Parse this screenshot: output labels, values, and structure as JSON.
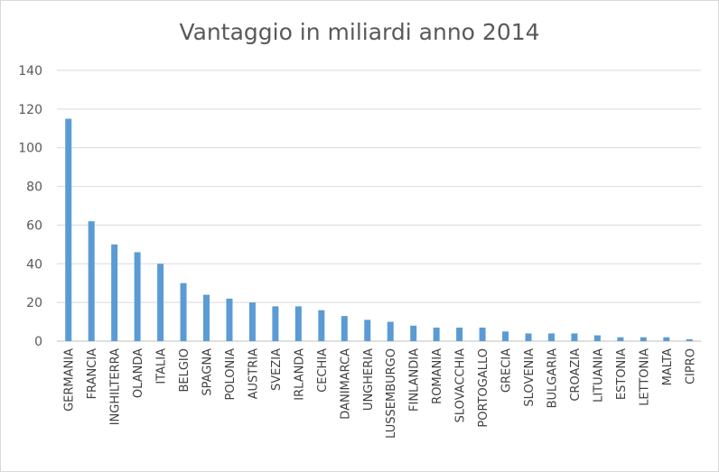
{
  "chart_data": {
    "type": "bar",
    "title": "Vantaggio in miliardi anno 2014",
    "xlabel": "",
    "ylabel": "",
    "ylim": [
      0,
      140
    ],
    "yticks": [
      0,
      20,
      40,
      60,
      80,
      100,
      120,
      140
    ],
    "grid": true,
    "legend": "none",
    "bar_color": "#5b9bd5",
    "categories": [
      "GERMANIA",
      "FRANCIA",
      "INGHILTERRA",
      "OLANDA",
      "ITALIA",
      "BELGIO",
      "SPAGNA",
      "POLONIA",
      "AUSTRIA",
      "SVEZIA",
      "IRLANDA",
      "CECHIA",
      "DANIMARCA",
      "UNGHERIA",
      "LUSSEMBURGO",
      "FINLANDIA",
      "ROMANIA",
      "SLOVACCHIA",
      "PORTOGALLO",
      "GRECIA",
      "SLOVENIA",
      "BULGARIA",
      "CROAZIA",
      "LITUANIA",
      "ESTONIA",
      "LETTONIA",
      "MALTA",
      "CIPRO"
    ],
    "values": [
      115,
      62,
      50,
      46,
      40,
      30,
      24,
      22,
      20,
      18,
      18,
      16,
      13,
      11,
      10,
      8,
      7,
      7,
      7,
      5,
      4,
      4,
      4,
      3,
      2,
      2,
      2,
      1
    ]
  }
}
